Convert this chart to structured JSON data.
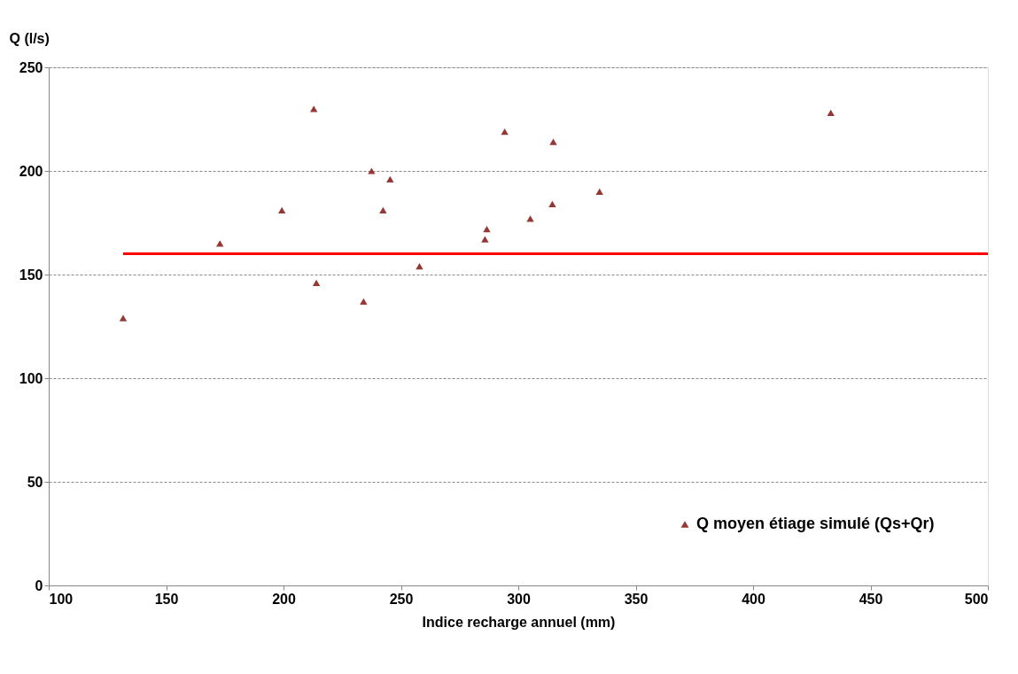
{
  "chart_data": {
    "type": "scatter",
    "xlabel": "Indice recharge annuel  (mm)",
    "ylabel": "Q (l/s)",
    "xlim": [
      100,
      500
    ],
    "xticks": [
      100,
      150,
      200,
      250,
      300,
      350,
      400,
      450,
      500
    ],
    "ylim": [
      0,
      250
    ],
    "yticks": [
      0,
      50,
      100,
      150,
      200,
      250
    ],
    "grid": "y",
    "legend": "bottom right",
    "marker": "triangle",
    "series": [
      {
        "name": "Q moyen étiage simulé (Qs+Qr)",
        "color": "#953735",
        "x": [
          131.7,
          172.9,
          199.3,
          212.9,
          214.0,
          234.1,
          237.5,
          242.4,
          245.4,
          257.9,
          285.8,
          286.6,
          294.2,
          305.1,
          314.5,
          314.9,
          334.6,
          433.1
        ],
        "values": [
          129,
          165,
          181,
          230,
          146,
          137,
          200,
          181,
          196,
          154,
          167,
          172,
          219,
          177,
          184,
          214,
          190,
          228
        ]
      },
      {
        "type": "line",
        "color": "#ff0000",
        "line_style": "solid",
        "marker": "none",
        "x": [
          131.7,
          500
        ],
        "values": [
          160,
          160
        ]
      }
    ]
  }
}
